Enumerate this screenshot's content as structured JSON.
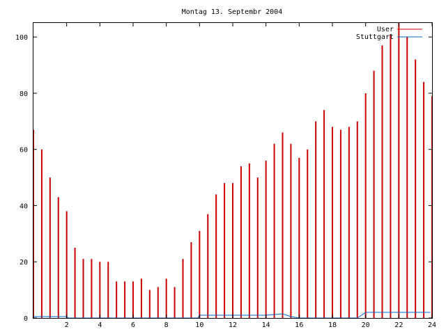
{
  "chart_data": {
    "type": "bar",
    "title": "Montag 13. Septembr 2004",
    "xlabel": "",
    "ylabel": "",
    "xlim": [
      0,
      24
    ],
    "ylim": [
      0,
      105
    ],
    "xticks": [
      2,
      4,
      6,
      8,
      10,
      12,
      14,
      16,
      18,
      20,
      22,
      24
    ],
    "yticks": [
      0,
      20,
      40,
      60,
      80,
      100
    ],
    "grid": false,
    "legend_position": "top-right",
    "series": [
      {
        "name": "User",
        "color": "#cc0000",
        "x": [
          0.0,
          0.5,
          1.0,
          1.5,
          2.0,
          2.5,
          3.0,
          3.5,
          4.0,
          4.5,
          5.0,
          5.5,
          6.0,
          6.5,
          7.0,
          7.5,
          8.0,
          8.5,
          9.0,
          9.5,
          10.0,
          10.5,
          11.0,
          11.5,
          12.0,
          12.5,
          13.0,
          13.5,
          14.0,
          14.5,
          15.0,
          15.5,
          16.0,
          16.5,
          17.0,
          17.5,
          18.0,
          18.5,
          19.0,
          19.5,
          20.0,
          20.5,
          21.0,
          21.5,
          22.0,
          22.5,
          23.0,
          23.5,
          24.0
        ],
        "values": [
          67,
          60,
          50,
          43,
          38,
          25,
          21,
          21,
          20,
          20,
          13,
          13,
          13,
          14,
          10,
          11,
          14,
          11,
          21,
          27,
          31,
          37,
          44,
          48,
          48,
          54,
          55,
          50,
          56,
          62,
          66,
          62,
          57,
          60,
          70,
          74,
          68,
          67,
          68,
          70,
          80,
          88,
          97,
          101,
          105,
          100,
          92,
          84,
          79
        ]
      },
      {
        "name": "Stuttgart",
        "color": "#0066cc",
        "x": [
          0.0,
          2.0,
          2.1,
          9.9,
          10.0,
          12.0,
          14.0,
          15.0,
          15.5,
          16.0,
          19.5,
          20.0,
          23.9
        ],
        "values": [
          0.5,
          0.5,
          0,
          0,
          1,
          1,
          1,
          1.5,
          0.5,
          0,
          0,
          2,
          2
        ]
      }
    ]
  }
}
